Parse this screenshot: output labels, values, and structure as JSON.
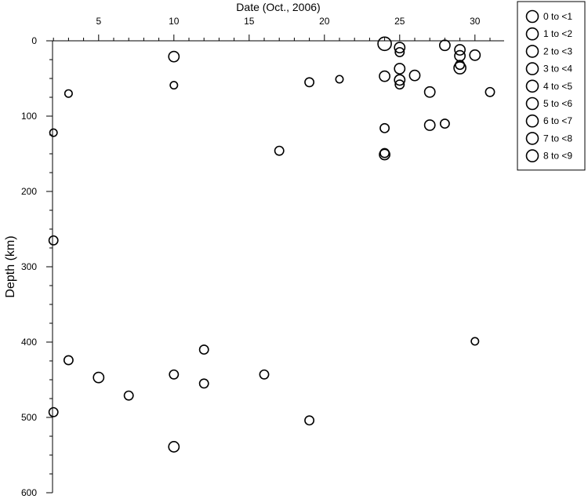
{
  "chart_data": {
    "type": "scatter",
    "title": "",
    "xlabel": "Date (Oct., 2006)",
    "ylabel": "Depth (km)",
    "xlim": [
      1,
      31
    ],
    "ylim": [
      0,
      600
    ],
    "y_inverted": true,
    "x_axis_position": "top",
    "x_ticks": [
      5,
      10,
      15,
      20,
      25,
      30
    ],
    "y_ticks": [
      0,
      100,
      200,
      300,
      400,
      500,
      600
    ],
    "legend": {
      "placement": "right",
      "title": "",
      "entries": [
        "0 to <1",
        "1 to <2",
        "2 to <3",
        "3 to <4",
        "4 to <5",
        "5 to <6",
        "6 to <7",
        "7 to <8",
        "8 to <9"
      ]
    },
    "points": [
      {
        "x": 2,
        "y": 122,
        "size": 2
      },
      {
        "x": 2,
        "y": 265,
        "size": 3
      },
      {
        "x": 2,
        "y": 493,
        "size": 3
      },
      {
        "x": 3,
        "y": 70,
        "size": 2
      },
      {
        "x": 3,
        "y": 424,
        "size": 3
      },
      {
        "x": 5,
        "y": 447,
        "size": 4
      },
      {
        "x": 7,
        "y": 471,
        "size": 3
      },
      {
        "x": 10,
        "y": 21,
        "size": 4
      },
      {
        "x": 10,
        "y": 59,
        "size": 2
      },
      {
        "x": 10,
        "y": 443,
        "size": 3
      },
      {
        "x": 10,
        "y": 539,
        "size": 4
      },
      {
        "x": 12,
        "y": 410,
        "size": 3
      },
      {
        "x": 12,
        "y": 455,
        "size": 3
      },
      {
        "x": 16,
        "y": 443,
        "size": 3
      },
      {
        "x": 17,
        "y": 146,
        "size": 3
      },
      {
        "x": 19,
        "y": 55,
        "size": 3
      },
      {
        "x": 19,
        "y": 504,
        "size": 3
      },
      {
        "x": 21,
        "y": 51,
        "size": 2
      },
      {
        "x": 24,
        "y": 4,
        "size": 6
      },
      {
        "x": 24,
        "y": 47,
        "size": 4
      },
      {
        "x": 24,
        "y": 116,
        "size": 3
      },
      {
        "x": 24,
        "y": 149,
        "size": 3
      },
      {
        "x": 24,
        "y": 151,
        "size": 4
      },
      {
        "x": 25,
        "y": 9,
        "size": 4
      },
      {
        "x": 25,
        "y": 15,
        "size": 3
      },
      {
        "x": 25,
        "y": 37,
        "size": 4
      },
      {
        "x": 25,
        "y": 52,
        "size": 4
      },
      {
        "x": 25,
        "y": 58,
        "size": 3
      },
      {
        "x": 26,
        "y": 46,
        "size": 4
      },
      {
        "x": 27,
        "y": 68,
        "size": 4
      },
      {
        "x": 27,
        "y": 112,
        "size": 4
      },
      {
        "x": 28,
        "y": 6,
        "size": 4
      },
      {
        "x": 28,
        "y": 110,
        "size": 3
      },
      {
        "x": 29,
        "y": 12,
        "size": 4
      },
      {
        "x": 29,
        "y": 20,
        "size": 4
      },
      {
        "x": 29,
        "y": 32,
        "size": 3
      },
      {
        "x": 29,
        "y": 36,
        "size": 5
      },
      {
        "x": 30,
        "y": 19,
        "size": 4
      },
      {
        "x": 30,
        "y": 399,
        "size": 2
      },
      {
        "x": 31,
        "y": 68,
        "size": 3
      }
    ]
  }
}
